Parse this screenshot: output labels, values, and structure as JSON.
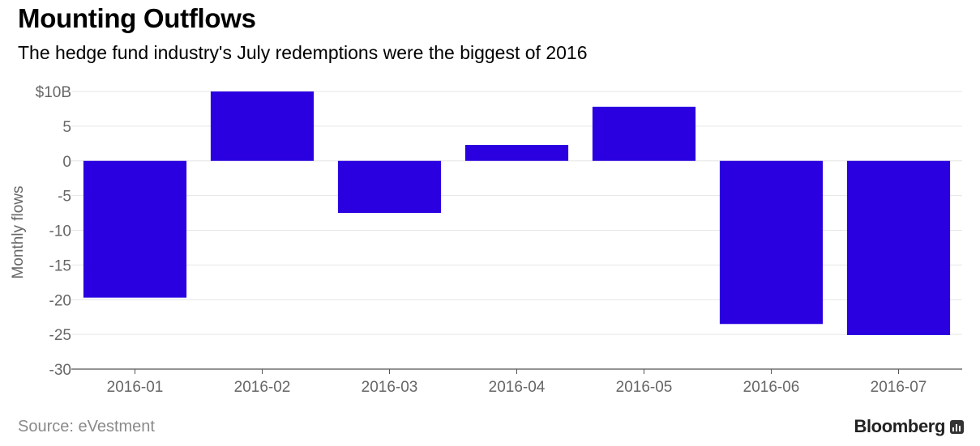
{
  "header": {
    "title": "Mounting Outflows",
    "subtitle": "The hedge fund industry's July redemptions were the biggest of 2016"
  },
  "footer": {
    "source": "Source: eVestment",
    "brand": "Bloomberg"
  },
  "colors": {
    "bar": "#2a00e0",
    "grid": "#e6e6e6",
    "axis": "#555555"
  },
  "chart_data": {
    "type": "bar",
    "categories": [
      "2016-01",
      "2016-02",
      "2016-03",
      "2016-04",
      "2016-05",
      "2016-06",
      "2016-07"
    ],
    "values": [
      -19.7,
      10.0,
      -7.5,
      2.3,
      7.8,
      -23.5,
      -25.1
    ],
    "ylabel": "Monthly flows",
    "ylim": [
      -30,
      10
    ],
    "yticks": [
      10,
      5,
      0,
      -5,
      -10,
      -15,
      -20,
      -25,
      -30
    ],
    "ytick_labels": [
      "$10B",
      "5",
      "0",
      "-5",
      "-10",
      "-15",
      "-20",
      "-25",
      "-30"
    ],
    "grid": true,
    "legend": "none"
  }
}
